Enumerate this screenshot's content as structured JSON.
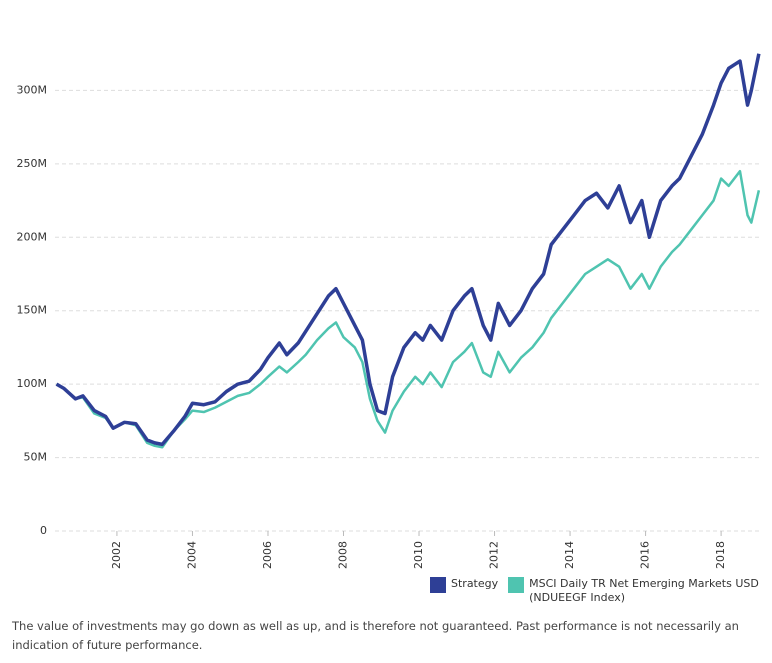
{
  "chart_data": {
    "type": "line",
    "x": [
      2000.4,
      2000.6,
      2000.9,
      2001.1,
      2001.4,
      2001.7,
      2001.9,
      2002.2,
      2002.5,
      2002.8,
      2003.0,
      2003.2,
      2003.5,
      2003.8,
      2004.0,
      2004.3,
      2004.6,
      2004.9,
      2005.2,
      2005.5,
      2005.8,
      2006.0,
      2006.3,
      2006.5,
      2006.8,
      2007.0,
      2007.3,
      2007.6,
      2007.8,
      2008.0,
      2008.3,
      2008.5,
      2008.7,
      2008.9,
      2009.1,
      2009.3,
      2009.6,
      2009.9,
      2010.1,
      2010.3,
      2010.6,
      2010.9,
      2011.2,
      2011.4,
      2011.7,
      2011.9,
      2012.1,
      2012.4,
      2012.7,
      2013.0,
      2013.3,
      2013.5,
      2013.8,
      2014.1,
      2014.4,
      2014.7,
      2015.0,
      2015.3,
      2015.6,
      2015.9,
      2016.1,
      2016.4,
      2016.7,
      2016.9,
      2017.2,
      2017.5,
      2017.8,
      2018.0,
      2018.2,
      2018.5,
      2018.7,
      2018.8,
      2019.0
    ],
    "series": [
      {
        "name": "Strategy",
        "color": "#2e3f96",
        "values": [
          100,
          97,
          90,
          92,
          82,
          78,
          70,
          74,
          73,
          62,
          60,
          59,
          68,
          78,
          87,
          86,
          88,
          95,
          100,
          102,
          110,
          118,
          128,
          120,
          128,
          136,
          148,
          160,
          165,
          155,
          140,
          130,
          100,
          82,
          80,
          105,
          125,
          135,
          130,
          140,
          130,
          150,
          160,
          165,
          140,
          130,
          155,
          140,
          150,
          165,
          175,
          195,
          205,
          215,
          225,
          230,
          220,
          235,
          210,
          225,
          200,
          225,
          235,
          240,
          255,
          270,
          290,
          305,
          315,
          320,
          290,
          300,
          325
        ]
      },
      {
        "name": "MSCI Daily TR Net Emerging Markets USD (NDUEEGF Index)",
        "color": "#4fc4b0",
        "values": [
          100,
          97,
          90,
          91,
          80,
          77,
          70,
          74,
          72,
          60,
          58,
          57,
          68,
          76,
          82,
          81,
          84,
          88,
          92,
          94,
          100,
          105,
          112,
          108,
          115,
          120,
          130,
          138,
          142,
          132,
          125,
          115,
          90,
          75,
          67,
          82,
          95,
          105,
          100,
          108,
          98,
          115,
          122,
          128,
          108,
          105,
          122,
          108,
          118,
          125,
          135,
          145,
          155,
          165,
          175,
          180,
          185,
          180,
          165,
          175,
          165,
          180,
          190,
          195,
          205,
          215,
          225,
          240,
          235,
          245,
          215,
          210,
          232
        ]
      }
    ],
    "xlim": [
      2000.36,
      2019.03
    ],
    "xticks": [
      2002,
      2004,
      2006,
      2008,
      2010,
      2012,
      2014,
      2016,
      2018
    ],
    "ylim": [
      0,
      350
    ],
    "yticks": [
      0,
      {
        "value": 50,
        "label": "50M"
      },
      {
        "value": 100,
        "label": "100M"
      },
      {
        "value": 150,
        "label": "150M"
      },
      {
        "value": 200,
        "label": "200M"
      },
      {
        "value": 250,
        "label": "250M"
      },
      {
        "value": 300,
        "label": "300M"
      }
    ],
    "grid": true
  },
  "footnote": "The value of investments may go down as well as up, and is therefore not guaranteed. Past performance is not necessarily an indication of future performance."
}
